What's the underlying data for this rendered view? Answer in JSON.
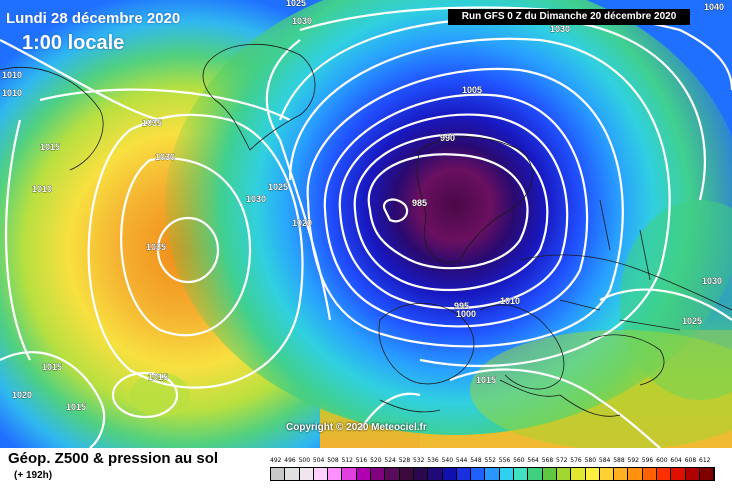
{
  "header": {
    "date": "Lundi 28 décembre 2020",
    "time": "1:00 locale",
    "run": "Run GFS 0 Z du Dimanche 20 décembre 2020"
  },
  "copyright": "Copyright © 2020 Meteociel.fr",
  "isobars": [
    {
      "label": "1025"
    },
    {
      "label": "1030"
    },
    {
      "label": "1010"
    },
    {
      "label": "1010"
    },
    {
      "label": "1035"
    },
    {
      "label": "1030"
    },
    {
      "label": "1015"
    },
    {
      "label": "1010"
    },
    {
      "label": "1025"
    },
    {
      "label": "1030"
    },
    {
      "label": "1020"
    },
    {
      "label": "1035"
    },
    {
      "label": "1005"
    },
    {
      "label": "990"
    },
    {
      "label": "985"
    },
    {
      "label": "995"
    },
    {
      "label": "1000"
    },
    {
      "label": "1010"
    },
    {
      "label": "1030"
    },
    {
      "label": "1025"
    },
    {
      "label": "1015"
    },
    {
      "label": "1015"
    },
    {
      "label": "1020"
    },
    {
      "label": "1015"
    },
    {
      "label": "1015"
    },
    {
      "label": "1040"
    },
    {
      "label": "1030"
    }
  ],
  "legend": {
    "title": "Géop. Z500 & pression au sol",
    "subtitle": "(+ 192h)",
    "scale_values": [
      "492",
      "496",
      "500",
      "504",
      "508",
      "512",
      "516",
      "520",
      "524",
      "528",
      "532",
      "536",
      "540",
      "544",
      "548",
      "552",
      "556",
      "560",
      "564",
      "568",
      "572",
      "576",
      "580",
      "584",
      "588",
      "592",
      "596",
      "600",
      "604",
      "608",
      "612"
    ],
    "colors": [
      "#c8c8c8",
      "#e0e0e0",
      "#f0e6f0",
      "#ffd0ff",
      "#ff90ff",
      "#e040e0",
      "#b000b0",
      "#800080",
      "#5a0a5a",
      "#3c0a3c",
      "#2a0850",
      "#200a78",
      "#1010b0",
      "#1830e0",
      "#2060ff",
      "#2898ff",
      "#30d0f0",
      "#40e0c0",
      "#40d080",
      "#60c840",
      "#a0d830",
      "#e0e830",
      "#fff040",
      "#ffd030",
      "#ffb020",
      "#ff9010",
      "#ff6000",
      "#ff3000",
      "#e01000",
      "#b00000",
      "#800000"
    ]
  }
}
